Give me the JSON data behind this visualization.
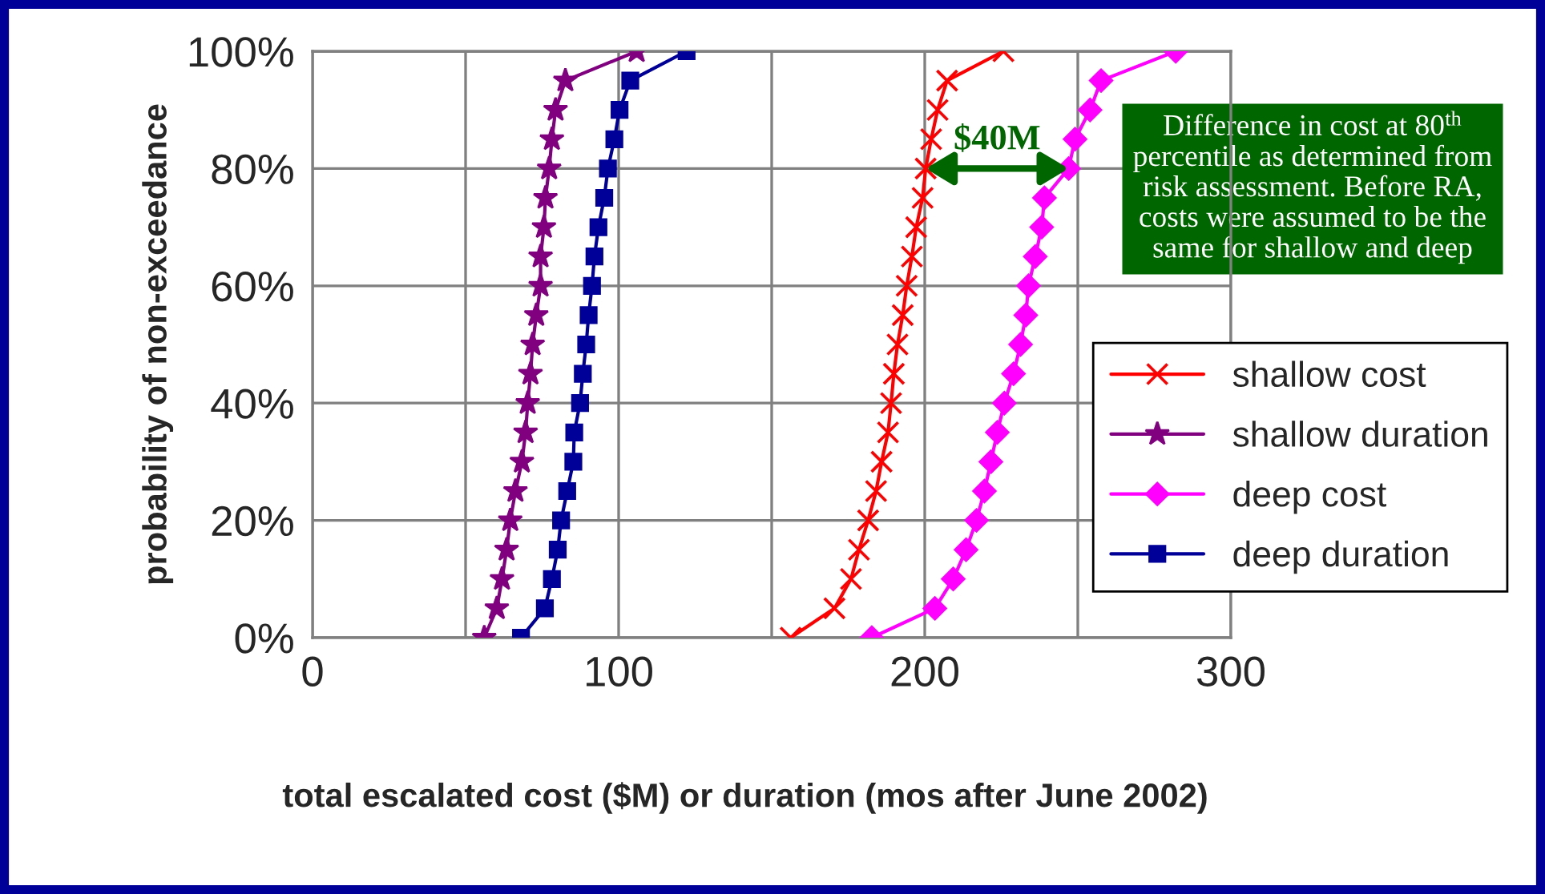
{
  "chart_data": {
    "type": "line",
    "xlabel": "total escalated cost ($M) or duration (mos after June 2002)",
    "ylabel": "probability of non-exceedance",
    "xlim": [
      0,
      300
    ],
    "xticks": [
      0,
      {
        "value": 50,
        "label": null
      },
      100,
      {
        "value": 150,
        "label": null
      },
      200,
      {
        "value": 250,
        "label": null
      },
      300
    ],
    "ylim": [
      0,
      100
    ],
    "yticks": [
      {
        "value": 0,
        "label": "0%"
      },
      {
        "value": 20,
        "label": "20%"
      },
      {
        "value": 40,
        "label": "40%"
      },
      {
        "value": 60,
        "label": "60%"
      },
      {
        "value": 80,
        "label": "80%"
      },
      {
        "value": 100,
        "label": "100%"
      }
    ],
    "grid": true,
    "legend": "bottom right",
    "line_style": "solid",
    "series": [
      {
        "name": "shallow cost",
        "color": "#ff0000",
        "marker": "cross",
        "x": [
          156.2,
          170.5,
          175.9,
          178.5,
          181.5,
          184.1,
          185.9,
          188.0,
          189.0,
          189.9,
          191.1,
          192.8,
          194.1,
          195.8,
          197.2,
          199.3,
          200.3,
          202.1,
          204.2,
          207.3,
          225.7
        ],
        "values": [
          0,
          5,
          10,
          15,
          20,
          25,
          30,
          35,
          40,
          45,
          50,
          55,
          60,
          65,
          70,
          75,
          80,
          85,
          90,
          95,
          100
        ]
      },
      {
        "name": "shallow duration",
        "color": "#800080",
        "marker": "star",
        "x": [
          56.1,
          60.2,
          61.9,
          63.4,
          64.6,
          66.3,
          68.4,
          69.6,
          70.3,
          71.2,
          71.9,
          73.1,
          74.5,
          74.5,
          75.6,
          76.1,
          77.3,
          78.2,
          79.4,
          82.6,
          105.9
        ],
        "values": [
          0,
          5,
          10,
          15,
          20,
          25,
          30,
          35,
          40,
          45,
          50,
          55,
          60,
          65,
          70,
          75,
          80,
          85,
          90,
          95,
          100
        ]
      },
      {
        "name": "deep cost",
        "color": "#ff00ff",
        "marker": "diamond",
        "x": [
          182.7,
          203.3,
          209.3,
          213.5,
          216.9,
          219.5,
          221.6,
          223.7,
          226.0,
          229.0,
          231.3,
          233.0,
          233.9,
          236.1,
          238.2,
          239.1,
          247.0,
          249.1,
          254.0,
          257.6,
          282.0
        ],
        "values": [
          0,
          5,
          10,
          15,
          20,
          25,
          30,
          35,
          40,
          45,
          50,
          55,
          60,
          65,
          70,
          75,
          80,
          85,
          90,
          95,
          100
        ]
      },
      {
        "name": "deep duration",
        "color": "#000099",
        "marker": "square",
        "x": [
          68.1,
          75.9,
          78.2,
          80.1,
          81.2,
          83.2,
          85.2,
          85.5,
          87.4,
          88.3,
          89.4,
          90.2,
          91.3,
          92.1,
          93.4,
          95.3,
          96.5,
          98.6,
          100.3,
          103.8,
          122.2
        ],
        "values": [
          0,
          5,
          10,
          15,
          20,
          25,
          30,
          35,
          40,
          45,
          50,
          55,
          60,
          65,
          70,
          75,
          80,
          85,
          90,
          95,
          100
        ]
      }
    ],
    "annotations": [
      {
        "text": "$40M",
        "x": 200.3,
        "y": 80
      },
      "Difference in cost at 80$^{th}$ percentile as determined from risk assessment. Before RA, costs were assumed to be the same for shallow and deep"
    ]
  }
}
